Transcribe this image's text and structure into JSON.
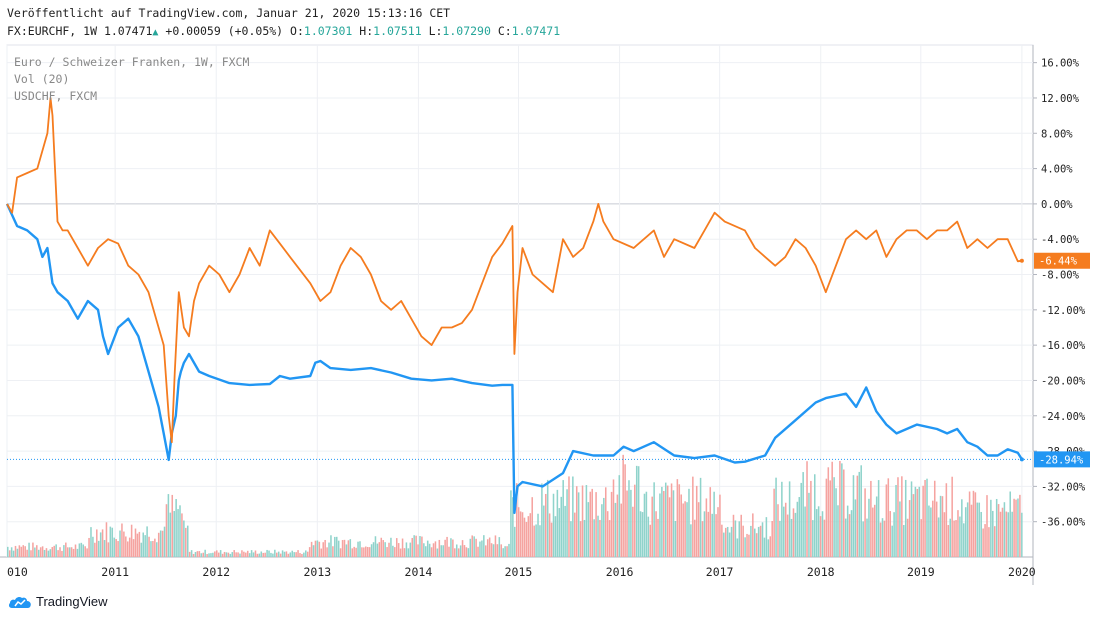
{
  "header": {
    "published": "Veröffentlicht auf TradingView.com, Januar 21, 2020 15:13:16 CET",
    "symbol": "FX:EURCHF, 1W",
    "last": "1.07471",
    "change": "+0.00059 (+0.05%)",
    "o_label": "O:",
    "o_value": "1.07301",
    "h_label": "H:",
    "h_value": "1.07511",
    "l_label": "L:",
    "l_value": "1.07290",
    "c_label": "C:",
    "c_value": "1.07471"
  },
  "legend": {
    "main": "Euro / Schweizer Franken, 1W, FXCM",
    "volume": "Vol (20)",
    "compare": "USDCHF, FXCM"
  },
  "brand": {
    "name": "TradingView"
  },
  "colors": {
    "eurchf": "#2196f3",
    "usdchf": "#f57c1f",
    "vol_up": "#8fd3cb",
    "vol_down": "#f5a3a0"
  },
  "chart_data": {
    "type": "line",
    "x_unit": "year",
    "xlim": [
      2010.0,
      2020.15
    ],
    "ylim": [
      -40,
      18
    ],
    "y_ticks": [
      "16.00%",
      "12.00%",
      "8.00%",
      "4.00%",
      "0.00%",
      "-4.00%",
      "-8.00%",
      "-12.00%",
      "-16.00%",
      "-20.00%",
      "-24.00%",
      "-28.00%",
      "-32.00%",
      "-36.00%"
    ],
    "y_tick_values": [
      16,
      12,
      8,
      4,
      0,
      -4,
      -8,
      -12,
      -16,
      -20,
      -24,
      -28,
      -32,
      -36
    ],
    "x_ticks": [
      "010",
      "2011",
      "2012",
      "2013",
      "2014",
      "2015",
      "2016",
      "2017",
      "2018",
      "2019",
      "2020"
    ],
    "x_tick_values": [
      2010.0,
      2011.07,
      2012.07,
      2013.07,
      2014.07,
      2015.06,
      2016.06,
      2017.05,
      2018.05,
      2019.04,
      2020.04
    ],
    "series": [
      {
        "name": "Euro / Schweizer Franken, 1W, FXCM",
        "color": "#2196f3",
        "last_label": "-28.94%",
        "x": [
          2010.0,
          2010.1,
          2010.2,
          2010.3,
          2010.35,
          2010.4,
          2010.45,
          2010.5,
          2010.6,
          2010.7,
          2010.8,
          2010.9,
          2010.95,
          2011.0,
          2011.1,
          2011.2,
          2011.3,
          2011.4,
          2011.5,
          2011.55,
          2011.6,
          2011.63,
          2011.67,
          2011.7,
          2011.72,
          2011.75,
          2011.8,
          2011.9,
          2012.0,
          2012.2,
          2012.4,
          2012.6,
          2012.7,
          2012.8,
          2013.0,
          2013.05,
          2013.1,
          2013.2,
          2013.4,
          2013.6,
          2013.8,
          2014.0,
          2014.2,
          2014.4,
          2014.6,
          2014.8,
          2014.9,
          2015.0,
          2015.02,
          2015.05,
          2015.1,
          2015.3,
          2015.5,
          2015.6,
          2015.8,
          2016.0,
          2016.1,
          2016.2,
          2016.4,
          2016.6,
          2016.8,
          2017.0,
          2017.2,
          2017.3,
          2017.5,
          2017.6,
          2017.8,
          2018.0,
          2018.1,
          2018.3,
          2018.4,
          2018.5,
          2018.6,
          2018.7,
          2018.8,
          2019.0,
          2019.2,
          2019.3,
          2019.4,
          2019.5,
          2019.6,
          2019.7,
          2019.8,
          2019.9,
          2020.0,
          2020.04
        ],
        "y": [
          0,
          -2.5,
          -3,
          -4,
          -6,
          -5,
          -9,
          -10,
          -11,
          -13,
          -11,
          -12,
          -15,
          -17,
          -14,
          -13,
          -15,
          -19,
          -23,
          -26,
          -29,
          -26,
          -24,
          -20,
          -19,
          -18,
          -17,
          -19,
          -19.5,
          -20.3,
          -20.5,
          -20.4,
          -19.5,
          -19.8,
          -19.5,
          -18,
          -17.8,
          -18.6,
          -18.8,
          -18.6,
          -19.1,
          -19.8,
          -20,
          -19.8,
          -20.3,
          -20.6,
          -20.5,
          -20.5,
          -35,
          -32,
          -31.5,
          -32,
          -30.5,
          -28,
          -28.5,
          -28.5,
          -27.5,
          -28,
          -27,
          -28.5,
          -28.8,
          -28.5,
          -29.3,
          -29.2,
          -28.5,
          -26.5,
          -24.5,
          -22.5,
          -22,
          -21.5,
          -23,
          -20.8,
          -23.5,
          -25,
          -26,
          -25,
          -25.5,
          -26,
          -25.5,
          -27,
          -27.5,
          -28.5,
          -28.5,
          -27.8,
          -28.2,
          -28.94
        ]
      },
      {
        "name": "USDCHF, FXCM",
        "color": "#f57c1f",
        "last_label": "-6.44%",
        "x": [
          2010.0,
          2010.05,
          2010.1,
          2010.2,
          2010.3,
          2010.4,
          2010.43,
          2010.45,
          2010.5,
          2010.55,
          2010.6,
          2010.7,
          2010.8,
          2010.9,
          2011.0,
          2011.1,
          2011.2,
          2011.3,
          2011.4,
          2011.5,
          2011.55,
          2011.6,
          2011.63,
          2011.66,
          2011.7,
          2011.75,
          2011.8,
          2011.85,
          2011.9,
          2012.0,
          2012.1,
          2012.2,
          2012.3,
          2012.4,
          2012.5,
          2012.6,
          2012.7,
          2012.8,
          2013.0,
          2013.1,
          2013.2,
          2013.3,
          2013.4,
          2013.5,
          2013.6,
          2013.7,
          2013.8,
          2013.9,
          2014.0,
          2014.1,
          2014.2,
          2014.3,
          2014.4,
          2014.5,
          2014.6,
          2014.7,
          2014.8,
          2014.9,
          2015.0,
          2015.02,
          2015.05,
          2015.1,
          2015.2,
          2015.3,
          2015.4,
          2015.5,
          2015.6,
          2015.7,
          2015.8,
          2015.85,
          2015.9,
          2016.0,
          2016.2,
          2016.4,
          2016.5,
          2016.6,
          2016.8,
          2016.9,
          2017.0,
          2017.1,
          2017.3,
          2017.4,
          2017.5,
          2017.6,
          2017.7,
          2017.8,
          2017.9,
          2018.0,
          2018.1,
          2018.2,
          2018.3,
          2018.4,
          2018.5,
          2018.6,
          2018.7,
          2018.8,
          2018.9,
          2019.0,
          2019.1,
          2019.2,
          2019.3,
          2019.4,
          2019.5,
          2019.6,
          2019.7,
          2019.8,
          2019.9,
          2020.0,
          2020.04
        ],
        "y": [
          0,
          -1,
          3,
          3.5,
          4,
          8,
          12,
          10,
          -2,
          -3,
          -3,
          -5,
          -7,
          -5,
          -4,
          -4.5,
          -7,
          -8,
          -10,
          -14,
          -16,
          -24,
          -27,
          -19,
          -10,
          -14,
          -15,
          -11,
          -9,
          -7,
          -8,
          -10,
          -8,
          -5,
          -7,
          -3,
          -4.5,
          -6,
          -9,
          -11,
          -10,
          -7,
          -5,
          -6,
          -8,
          -11,
          -12,
          -11,
          -13,
          -15,
          -16,
          -14,
          -14,
          -13.5,
          -12,
          -9,
          -6,
          -4.5,
          -2.5,
          -17,
          -10,
          -5,
          -8,
          -9,
          -10,
          -4,
          -6,
          -5,
          -2,
          0,
          -2,
          -4,
          -5,
          -3,
          -6,
          -4,
          -5,
          -3,
          -1,
          -2,
          -3,
          -5,
          -6,
          -7,
          -6,
          -4,
          -5,
          -7,
          -10,
          -7,
          -4,
          -3,
          -4,
          -3,
          -6,
          -4,
          -3,
          -3,
          -4,
          -3,
          -3,
          -2,
          -5,
          -4,
          -5,
          -4,
          -4,
          -6.5,
          -6.44
        ]
      }
    ],
    "volume": {
      "name": "Vol (20)",
      "height_fraction_of_panel": 0.2
    }
  }
}
